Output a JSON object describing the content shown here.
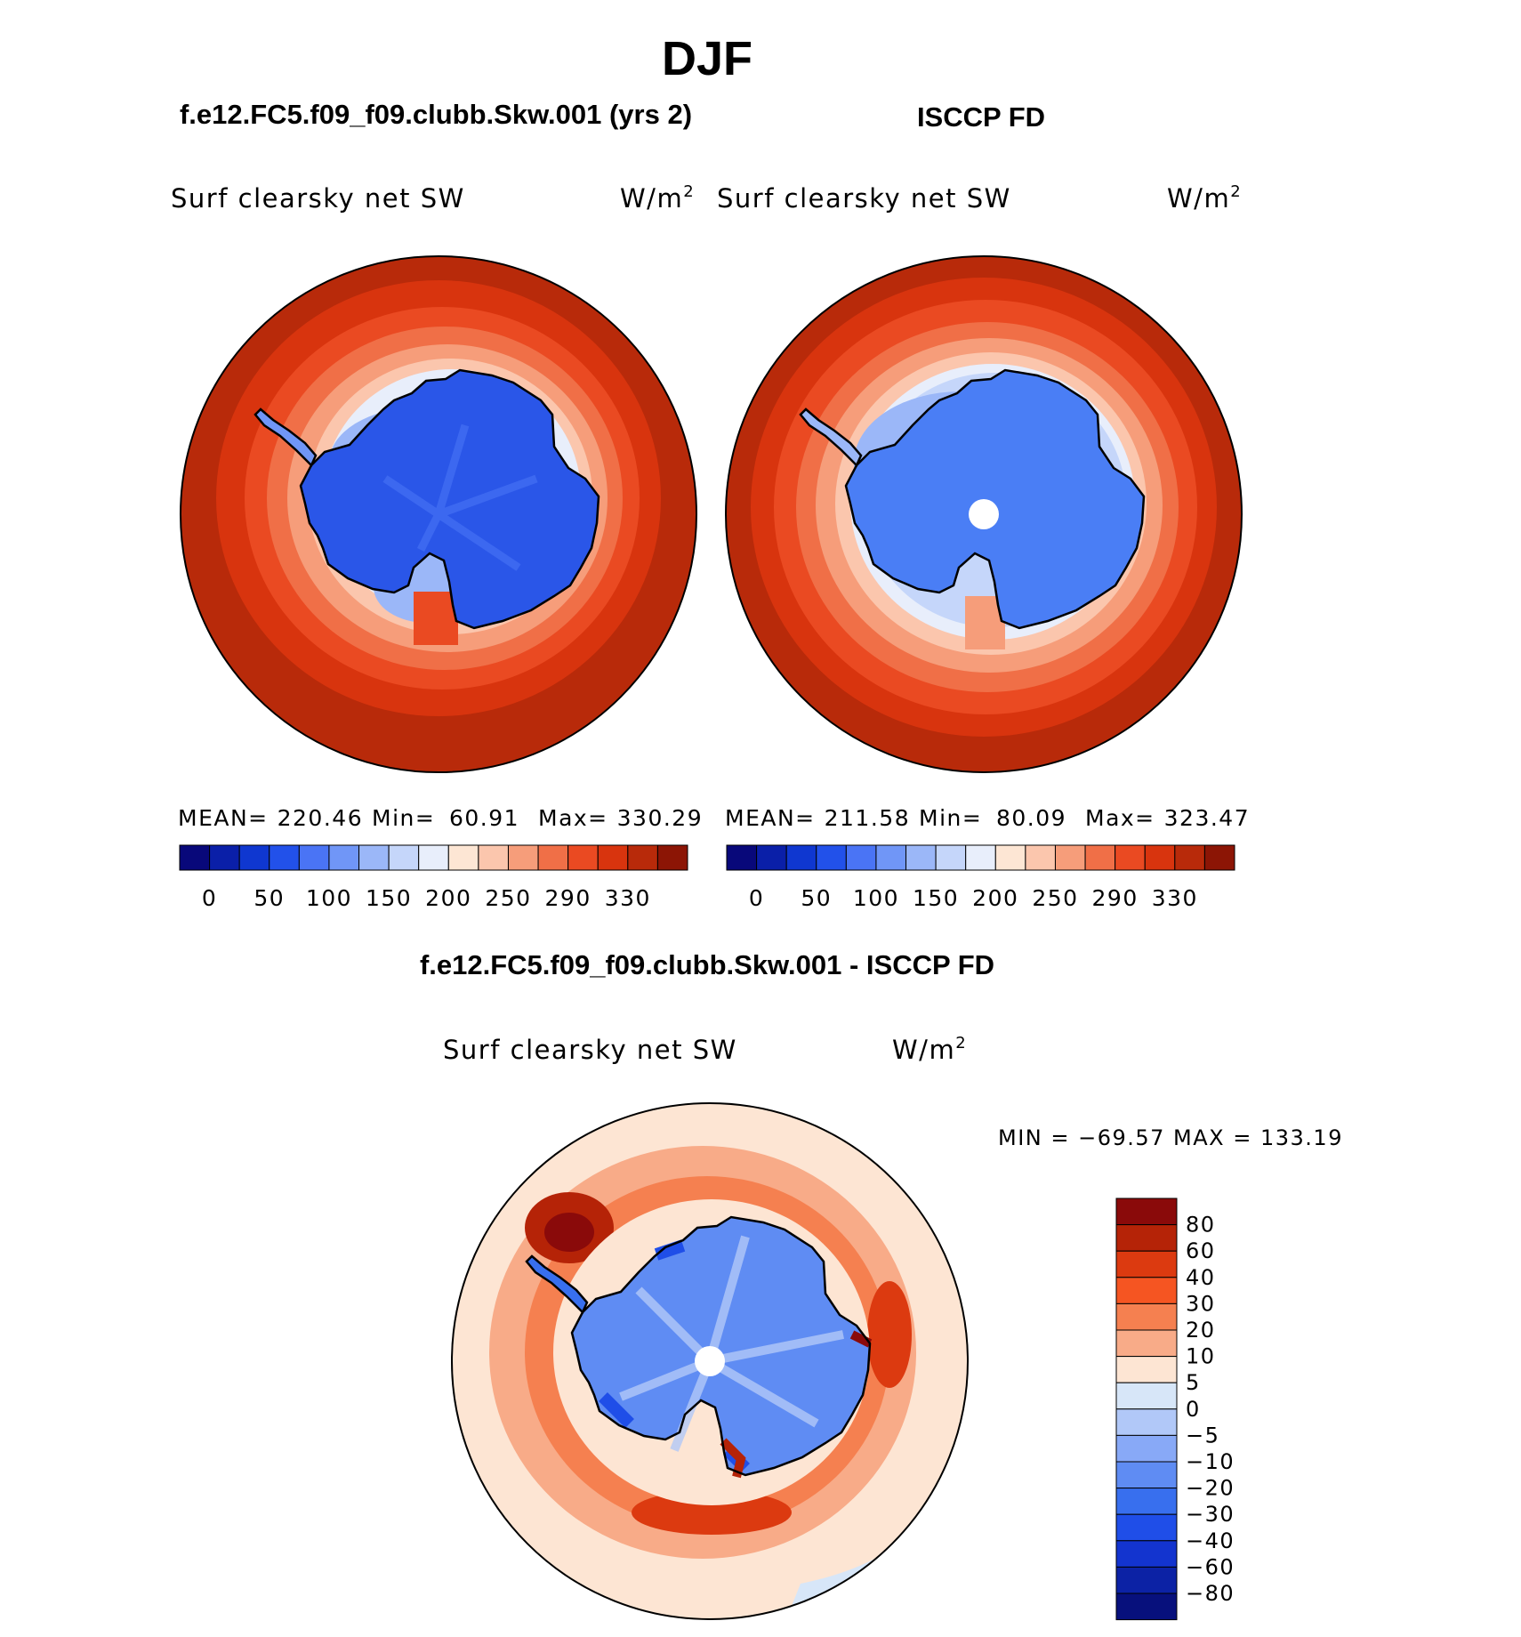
{
  "season": "DJF",
  "colors": {
    "ocean_dark": "#b82a0a",
    "coast": "#000000",
    "ice_model": "#2a56e8",
    "ice_obs": "#4a7ef5"
  },
  "panels": [
    {
      "title": "f.e12.FC5.f09_f09.clubb.Skw.001 (yrs 2)",
      "variable": "Surf clearsky net SW",
      "units": "W/m",
      "units_exp": "2",
      "stats": {
        "mean_label": "MEAN=",
        "mean": "220.46",
        "min_label": "Min=",
        "min": "60.91",
        "max_label": "Max=",
        "max": "330.29"
      }
    },
    {
      "title": "ISCCP FD",
      "variable": "Surf clearsky net SW",
      "units": "W/m",
      "units_exp": "2",
      "stats": {
        "mean_label": "MEAN=",
        "mean": "211.58",
        "min_label": "Min=",
        "min": "80.09",
        "max_label": "Max=",
        "max": "323.47"
      }
    }
  ],
  "colorbar_abs": {
    "colors": [
      "#08087a",
      "#0a1fa8",
      "#0f37d0",
      "#2251ea",
      "#4a74f5",
      "#7096f7",
      "#9bb7f8",
      "#c5d6fa",
      "#e8eefb",
      "#fde6d4",
      "#fbc6ad",
      "#f69d7a",
      "#f06f47",
      "#ea4a22",
      "#d8340e",
      "#b82a0a",
      "#8c1505"
    ],
    "labels": [
      "0",
      "50",
      "100",
      "150",
      "200",
      "250",
      "290",
      "330"
    ]
  },
  "diff": {
    "title": "f.e12.FC5.f09_f09.clubb.Skw.001 - ISCCP FD",
    "variable": "Surf clearsky net SW",
    "units": "W/m",
    "units_exp": "2",
    "minmax_label": "MIN = −69.57 MAX = 133.19"
  },
  "colorbar_diff": {
    "colors": [
      "#8a0a0a",
      "#b52307",
      "#dc3a10",
      "#f55522",
      "#f58050",
      "#f8ab88",
      "#fde5d3",
      "#d7e6f8",
      "#b1c8f8",
      "#88a9f7",
      "#5f8cf3",
      "#386fee",
      "#1f4ee8",
      "#1334cf",
      "#0c22a5",
      "#07107c"
    ],
    "labels": [
      "80",
      "60",
      "40",
      "30",
      "20",
      "10",
      "5",
      "0",
      "−5",
      "−10",
      "−20",
      "−30",
      "−40",
      "−60",
      "−80"
    ]
  }
}
